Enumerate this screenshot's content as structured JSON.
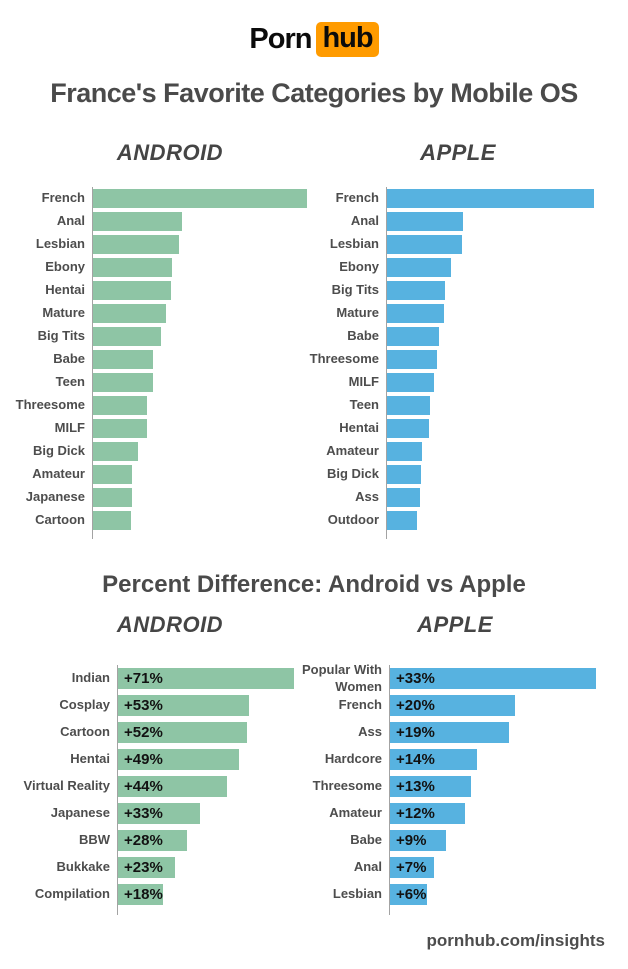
{
  "logo": {
    "part1": "Porn",
    "part2": "hub",
    "brand_orange": "#ff9b00"
  },
  "title": "France's Favorite Categories by Mobile OS",
  "section2_title": "Percent Difference: Android vs Apple",
  "footer": {
    "site": "pornhub.com/insights"
  },
  "colors": {
    "android_bar": "#8ec5a5",
    "apple_bar": "#57b2e0",
    "text_dark": "#4a4a4a",
    "label_text": "#4d4d4d",
    "axis_line": "#a3a3a3",
    "bar_value_text": "#121212",
    "logo_orange": "#ff9b00",
    "background": "#ffffff"
  },
  "chart_data": [
    {
      "id": "android-top-categories",
      "type": "bar",
      "orientation": "horizontal",
      "title": "ANDROID",
      "categories": [
        "French",
        "Anal",
        "Lesbian",
        "Ebony",
        "Hentai",
        "Mature",
        "Big Tits",
        "Babe",
        "Teen",
        "Threesome",
        "MILF",
        "Big Dick",
        "Amateur",
        "Japanese",
        "Cartoon"
      ],
      "values": [
        100,
        41.6,
        40.2,
        36.9,
        36.4,
        34.1,
        31.8,
        28.0,
        28.0,
        25.2,
        25.2,
        21.0,
        18.2,
        18.2,
        17.8
      ],
      "value_note": "relative bar length as % of longest bar; no numeric labels shown in image",
      "bar_color": "#8ec5a5",
      "grid": false,
      "legend": false
    },
    {
      "id": "apple-top-categories",
      "type": "bar",
      "orientation": "horizontal",
      "title": "APPLE",
      "categories": [
        "French",
        "Anal",
        "Lesbian",
        "Ebony",
        "Big Tits",
        "Mature",
        "Babe",
        "Threesome",
        "MILF",
        "Teen",
        "Hentai",
        "Amateur",
        "Big Dick",
        "Ass",
        "Outdoor"
      ],
      "values": [
        100,
        36.7,
        36.2,
        30.9,
        28.0,
        27.5,
        25.1,
        24.2,
        22.7,
        20.8,
        20.3,
        16.9,
        16.4,
        15.9,
        14.5
      ],
      "value_note": "relative bar length as % of longest bar; no numeric labels shown in image",
      "bar_color": "#57b2e0",
      "grid": false,
      "legend": false
    },
    {
      "id": "android-percent-difference",
      "type": "bar",
      "orientation": "horizontal",
      "title": "ANDROID",
      "categories": [
        "Indian",
        "Cosplay",
        "Cartoon",
        "Hentai",
        "Virtual Reality",
        "Japanese",
        "BBW",
        "Bukkake",
        "Compilation"
      ],
      "values": [
        71,
        53,
        52,
        49,
        44,
        33,
        28,
        23,
        18
      ],
      "bar_labels": [
        "+71%",
        "+53%",
        "+52%",
        "+49%",
        "+44%",
        "+33%",
        "+28%",
        "+23%",
        "+18%"
      ],
      "bar_color": "#8ec5a5",
      "grid": false,
      "legend": false
    },
    {
      "id": "apple-percent-difference",
      "type": "bar",
      "orientation": "horizontal",
      "title": "APPLE",
      "categories": [
        "Popular With Women",
        "French",
        "Ass",
        "Hardcore",
        "Threesome",
        "Amateur",
        "Babe",
        "Anal",
        "Lesbian"
      ],
      "values": [
        33,
        20,
        19,
        14,
        13,
        12,
        9,
        7,
        6
      ],
      "bar_labels": [
        "+33%",
        "+20%",
        "+19%",
        "+14%",
        "+13%",
        "+12%",
        "+9%",
        "+7%",
        "+6%"
      ],
      "bar_color": "#57b2e0",
      "grid": false,
      "legend": false
    }
  ]
}
